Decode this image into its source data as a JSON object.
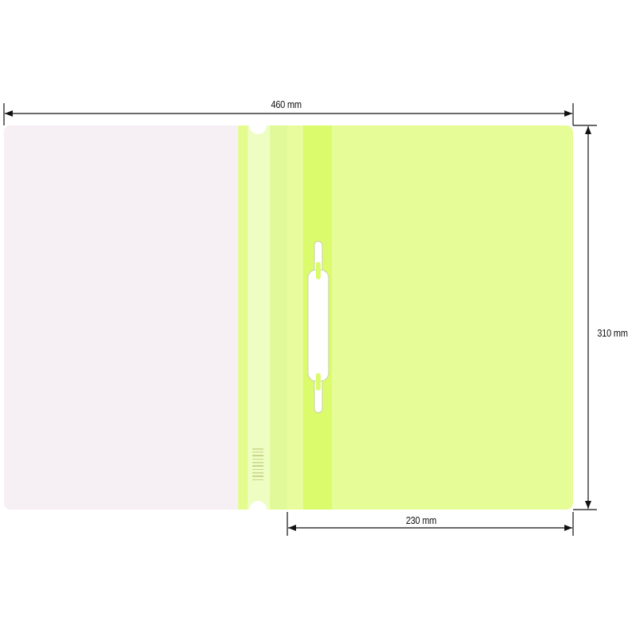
{
  "dimensions": {
    "width_total": "460 mm",
    "height": "310 mm",
    "width_cover": "230 mm"
  },
  "colors": {
    "back_cover": "#f6eff4",
    "front_cover": "#e6fc96",
    "spine_bright": "#dbfb6c",
    "spine_pale": "#eefdc2",
    "fastener": "#ffffff"
  }
}
